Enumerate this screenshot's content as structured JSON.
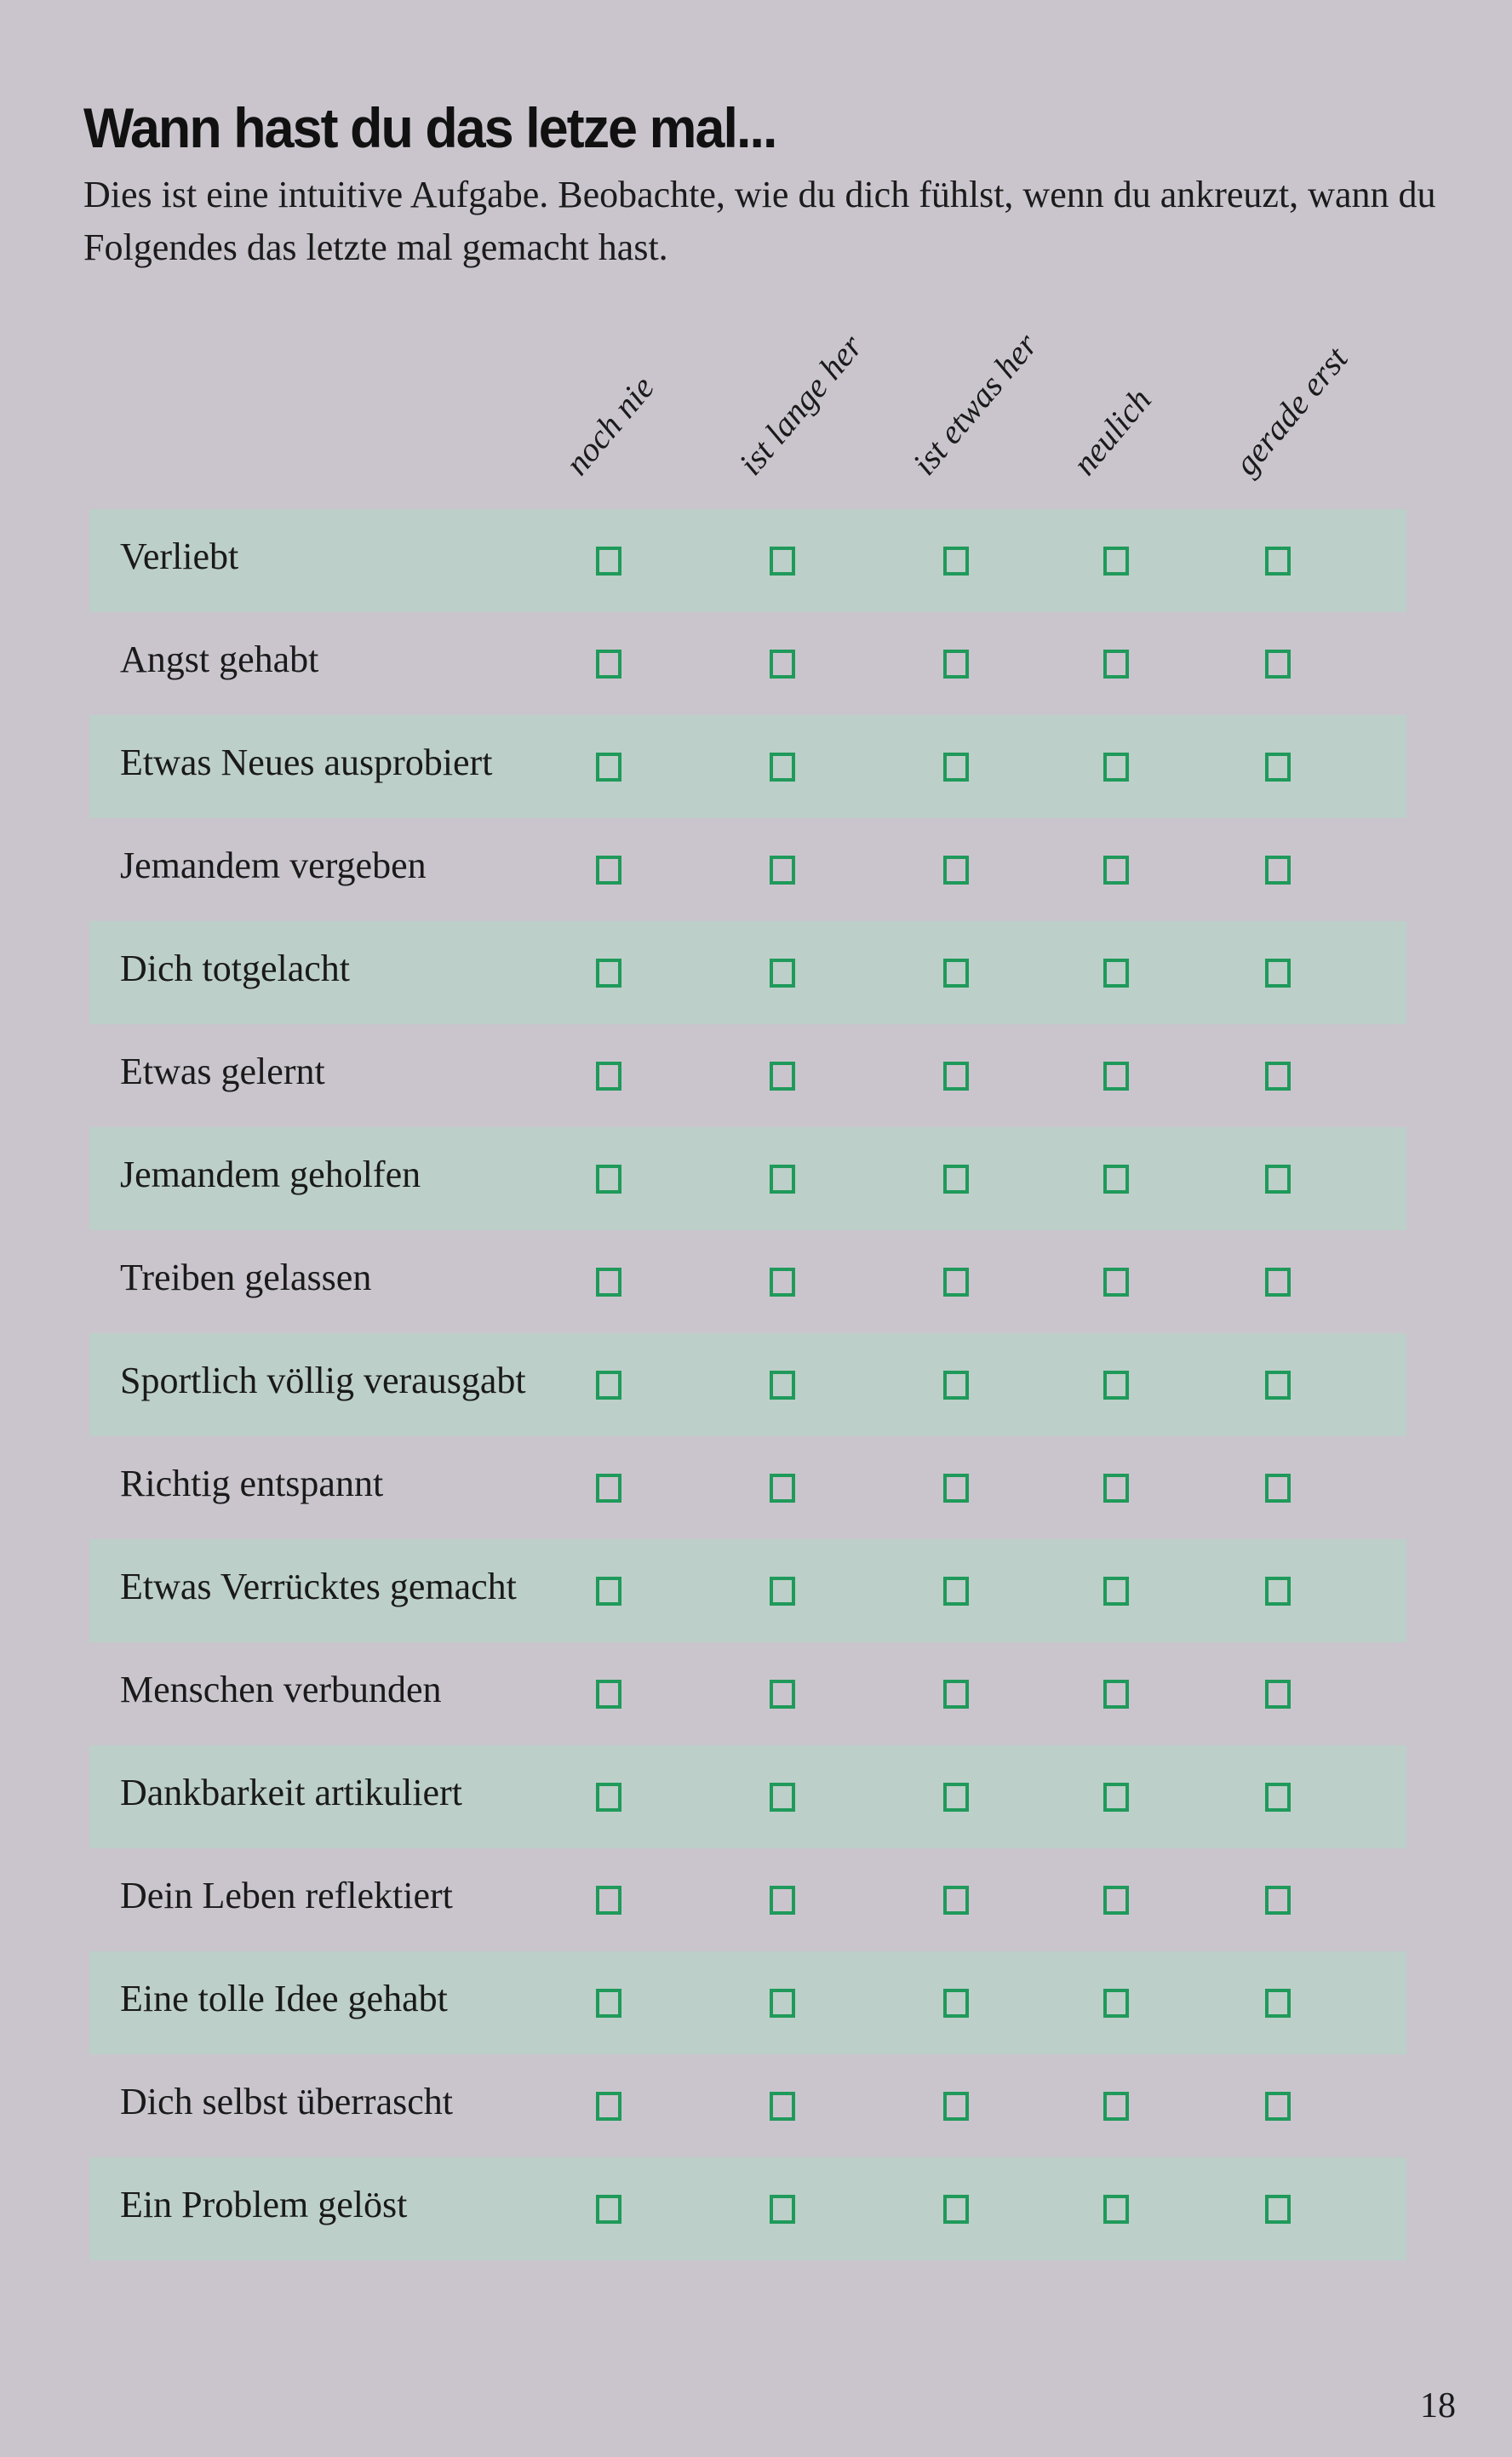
{
  "title": "Wann hast du das letze mal...",
  "intro": "Dies ist eine intuitive Aufgabe. Beobachte, wie du dich fühlst, wenn du ankreuzt, wann du Folgendes das letzte mal gemacht hast.",
  "columns": [
    "noch nie",
    "ist lange her",
    "ist etwas her",
    "neulich",
    "gerade erst"
  ],
  "rows": [
    "Verliebt",
    "Angst gehabt",
    "Etwas Neues ausprobiert",
    "Jemandem vergeben",
    "Dich totgelacht",
    "Etwas gelernt",
    "Jemandem geholfen",
    "Treiben gelassen",
    "Sportlich völlig verausgabt",
    "Richtig entspannt",
    "Etwas Verrücktes gemacht",
    "Menschen verbunden",
    "Dankbarkeit artikuliert",
    "Dein Leben reflektiert",
    "Eine tolle Idee gehabt",
    "Dich selbst überrascht",
    "Ein Problem gelöst"
  ],
  "page_number": "18",
  "colors": {
    "checkbox": "#1f9a5a",
    "band": "#bccfc8",
    "paper": "#cac5cd"
  }
}
